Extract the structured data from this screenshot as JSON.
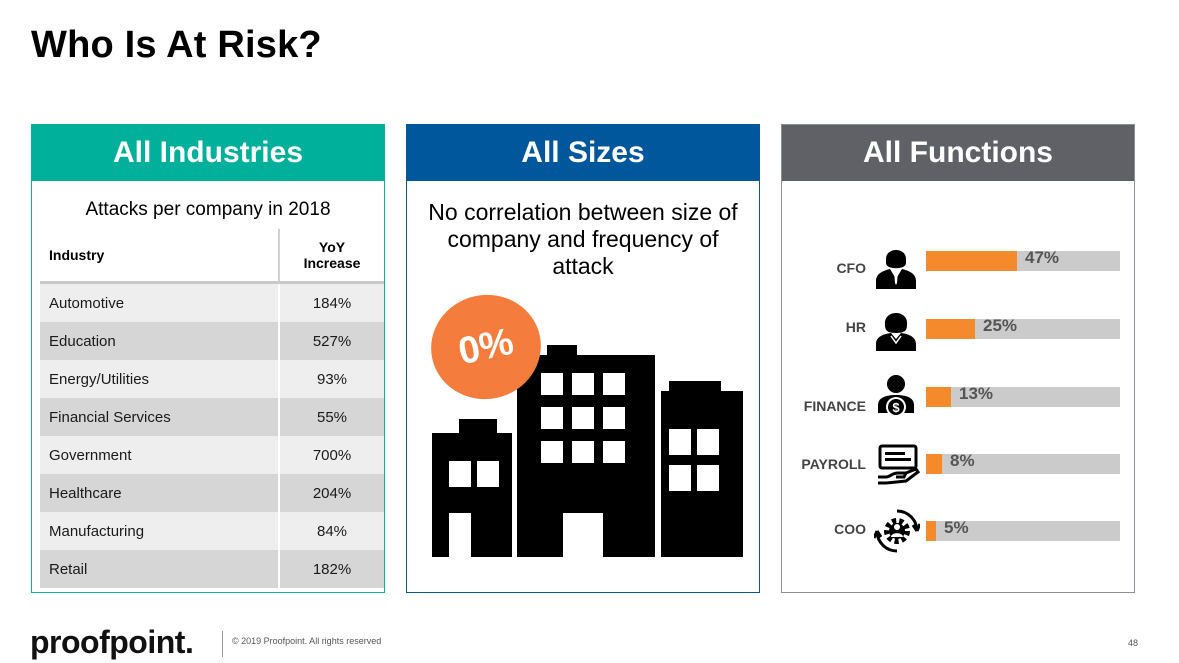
{
  "title": "Who Is At Risk?",
  "panels": {
    "industries": {
      "header": "All Industries",
      "header_color": "#00b09b",
      "subtitle": "Attacks per company in 2018",
      "columns": [
        "Industry",
        "YoY\nIncrease"
      ],
      "rows": [
        {
          "industry": "Automotive",
          "increase": "184%"
        },
        {
          "industry": "Education",
          "increase": "527%"
        },
        {
          "industry": "Energy/Utilities",
          "increase": "93%"
        },
        {
          "industry": "Financial Services",
          "increase": "55%"
        },
        {
          "industry": "Government",
          "increase": "700%"
        },
        {
          "industry": "Healthcare",
          "increase": "204%"
        },
        {
          "industry": "Manufacturing",
          "increase": "84%"
        },
        {
          "industry": "Retail",
          "increase": "182%"
        }
      ]
    },
    "sizes": {
      "header": "All Sizes",
      "header_color": "#00579c",
      "caption": "No correlation between size of company and frequency of attack",
      "badge": "0%",
      "badge_color": "#f47c3c",
      "icon": "buildings-icon"
    },
    "functions": {
      "header": "All Functions",
      "header_color": "#5f6166",
      "bar_color": "#f58a2c",
      "track_color": "#cbcbcb",
      "items": [
        {
          "label": "CFO",
          "value": "47%",
          "fraction": 0.47,
          "icon": "executive-icon"
        },
        {
          "label": "HR",
          "value": "25%",
          "fraction": 0.25,
          "icon": "woman-icon"
        },
        {
          "label": "FINANCE",
          "value": "13%",
          "fraction": 0.13,
          "icon": "finance-person-icon"
        },
        {
          "label": "PAYROLL",
          "value": "8%",
          "fraction": 0.08,
          "icon": "paycheck-hand-icon"
        },
        {
          "label": "COO",
          "value": "5%",
          "fraction": 0.05,
          "icon": "operations-gear-icon"
        }
      ]
    }
  },
  "footer": {
    "logo": "proofpoint.",
    "copyright": "© 2019 Proofpoint. All rights reserved",
    "page": "48"
  }
}
